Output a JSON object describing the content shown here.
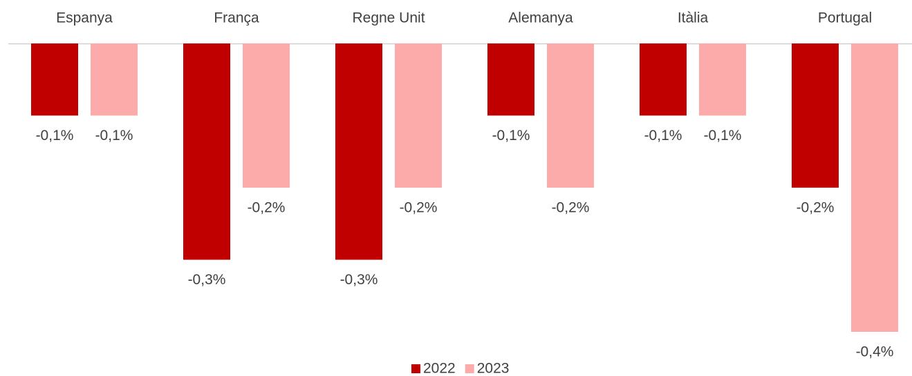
{
  "chart_data": {
    "type": "bar",
    "categories": [
      "Espanya",
      "França",
      "Regne Unit",
      "Alemanya",
      "Itàlia",
      "Portugal"
    ],
    "series": [
      {
        "name": "2022",
        "color": "#c00000",
        "values": [
          -0.1,
          -0.3,
          -0.3,
          -0.1,
          -0.1,
          -0.2
        ],
        "value_labels": [
          "-0,1%",
          "-0,3%",
          "-0,3%",
          "-0,1%",
          "-0,1%",
          "-0,2%"
        ]
      },
      {
        "name": "2023",
        "color": "#fdaaaa",
        "values": [
          -0.1,
          -0.2,
          -0.2,
          -0.2,
          -0.1,
          -0.4
        ],
        "value_labels": [
          "-0,1%",
          "-0,2%",
          "-0,2%",
          "-0,2%",
          "-0,1%",
          "-0,4%"
        ]
      }
    ],
    "ylim": [
      -0.4,
      0
    ],
    "legend": "bottom"
  }
}
